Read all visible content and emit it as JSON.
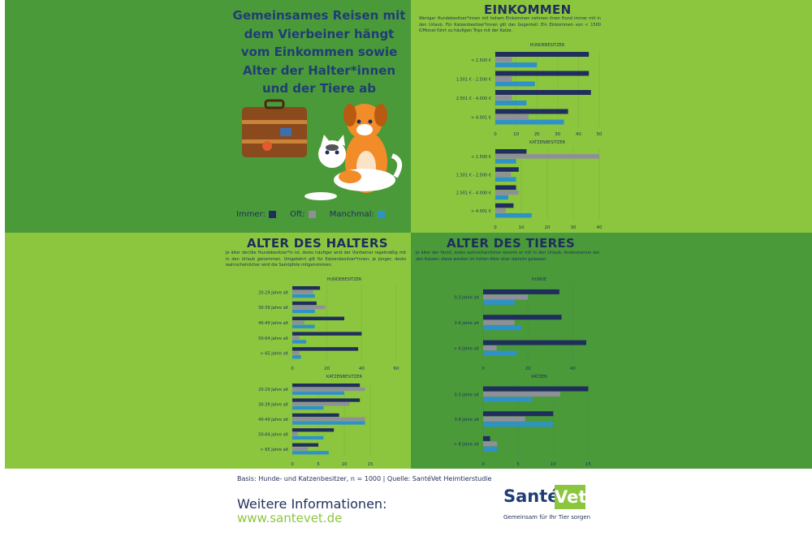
{
  "headline": [
    "Gemeinsames Reisen mit",
    "dem Vierbeiner hängt",
    "vom Einkommen sowie",
    "Alter der Halter*innen",
    "und der Tiere ab"
  ],
  "legend": [
    "Immer:",
    "Oft:",
    "Manchmal:"
  ],
  "colors": {
    "immer": "#1f2e5c",
    "oft": "#8f8f9a",
    "manchmal": "#2e92c7",
    "dark_green": "#4a9a3a",
    "light_green": "#8cc63e"
  },
  "illustration": [
    "suitcase-icon",
    "dog-icon",
    "cat-icon"
  ],
  "sections": {
    "einkommen": {
      "title": "EINKOMMEN",
      "text": "Weniger Hundebesitzer*innen mit hohem Einkommen nehmen ihren Hund immer mit in den Urlaub. Für Katzenbesitzer*innen gilt das Gegenteil: Ein Einkommen von < 1500 €/Monat führt zu häufigen Trips mit der Katze."
    },
    "alter_halter": {
      "title": "ALTER DES HALTERS",
      "text": "Je älter der/die Hundebesitzer*in ist, desto häufiger wird der Vierbeiner regelmäßig mit in den Urlaub genommen. Umgekehrt gilt für Katzenbesitzer*innen: je jünger, desto wahrscheinlicher wird die Samtpfote mitgenommen."
    },
    "alter_tier": {
      "title": "ALTER DES TIERES",
      "text": "Je älter der Hund, desto wahrscheinlicher kommt er mit in den Urlaub. Andersherum bei den Katzen: diese werden im hohen Alter eher daheim gelassen."
    }
  },
  "chart_data": [
    {
      "id": "einkommen-hunde",
      "type": "bar",
      "orientation": "horizontal",
      "title": "HUNDEBESITZER",
      "categories": [
        "< 1.500 €",
        "1.501 € - 2.500 €",
        "2.501 € - 4.000 €",
        "> 4.001 €"
      ],
      "series": [
        {
          "name": "Immer:",
          "values": [
            45,
            45,
            46,
            35
          ]
        },
        {
          "name": "Oft:",
          "values": [
            8,
            8,
            8,
            16
          ]
        },
        {
          "name": "Manchmal:",
          "values": [
            20,
            19,
            15,
            33
          ]
        }
      ],
      "ticks": [
        0,
        10,
        20,
        30,
        40,
        50
      ],
      "xlim": [
        0,
        50
      ]
    },
    {
      "id": "einkommen-katzen",
      "type": "bar",
      "orientation": "horizontal",
      "title": "KATZENBESITZER",
      "categories": [
        "< 1.500 €",
        "1.501 € - 2.500 €",
        "2.501 € - 4.000 €",
        "> 4.001 €"
      ],
      "series": [
        {
          "name": "Immer:",
          "values": [
            12,
            9,
            8,
            7
          ]
        },
        {
          "name": "Oft:",
          "values": [
            40,
            6,
            9,
            4
          ]
        },
        {
          "name": "Manchmal:",
          "values": [
            8,
            8,
            5,
            14
          ]
        }
      ],
      "ticks": [
        0,
        10,
        20,
        30,
        40
      ],
      "xlim": [
        0,
        40
      ]
    },
    {
      "id": "halter-hunde",
      "type": "bar",
      "orientation": "horizontal",
      "title": "HUNDEBESITZER",
      "categories": [
        "20-29 Jahre alt",
        "30-39 Jahre alt",
        "40-49 Jahre alt",
        "50-64 Jahre alt",
        "> 65 Jahre alt"
      ],
      "series": [
        {
          "name": "Immer:",
          "values": [
            16,
            14,
            30,
            40,
            38
          ]
        },
        {
          "name": "Oft:",
          "values": [
            12,
            19,
            7,
            4,
            4
          ]
        },
        {
          "name": "Manchmal:",
          "values": [
            13,
            13,
            13,
            8,
            5
          ]
        }
      ],
      "ticks": [
        0,
        20,
        40,
        60
      ],
      "xlim": [
        0,
        60
      ]
    },
    {
      "id": "halter-katzen",
      "type": "bar",
      "orientation": "horizontal",
      "title": "KATZENBESITZER",
      "categories": [
        "20-29 Jahre alt",
        "30-39 Jahre alt",
        "40-49 Jahre alt",
        "50-64 Jahre alt",
        "> 65 Jahre alt"
      ],
      "series": [
        {
          "name": "Immer:",
          "values": [
            13,
            13,
            9,
            8,
            5
          ]
        },
        {
          "name": "Oft:",
          "values": [
            14,
            11,
            14,
            1,
            3
          ]
        },
        {
          "name": "Manchmal:",
          "values": [
            10,
            6,
            14,
            6,
            7
          ]
        }
      ],
      "ticks": [
        0,
        5,
        10,
        15
      ],
      "xlim": [
        0,
        20
      ]
    },
    {
      "id": "tier-hunde",
      "type": "bar",
      "orientation": "horizontal",
      "title": "HUNDE",
      "categories": [
        "0-3 Jahre alt",
        "3-6 Jahre alt",
        "> 6 Jahre alt"
      ],
      "series": [
        {
          "name": "Immer:",
          "values": [
            34,
            35,
            46
          ]
        },
        {
          "name": "Oft:",
          "values": [
            20,
            14,
            6
          ]
        },
        {
          "name": "Manchmal:",
          "values": [
            14,
            17,
            15
          ]
        }
      ],
      "ticks": [
        0,
        20,
        40
      ],
      "xlim": [
        0,
        50
      ]
    },
    {
      "id": "tier-katzen",
      "type": "bar",
      "orientation": "horizontal",
      "title": "KATZEN",
      "categories": [
        "0-3 Jahre alt",
        "3-8 Jahre alt",
        "> 8 Jahre alt"
      ],
      "series": [
        {
          "name": "Immer:",
          "values": [
            15,
            10,
            1
          ]
        },
        {
          "name": "Oft:",
          "values": [
            11,
            6,
            2
          ]
        },
        {
          "name": "Manchmal:",
          "values": [
            7,
            10,
            2
          ]
        }
      ],
      "ticks": [
        0,
        5,
        10,
        15
      ],
      "xlim": [
        0,
        16
      ]
    }
  ],
  "footer": {
    "source": "Basis: Hunde- und Katzenbesitzer, n = 1000 | Quelle: SantéVet Heimtierstudie",
    "more_info": "Weitere Informationen:",
    "url": "www.santevet.de",
    "logo_sante": "Santé",
    "logo_vet": "Vet",
    "logo_tagline": "Gemeinsam für Ihr Tier sorgen"
  }
}
